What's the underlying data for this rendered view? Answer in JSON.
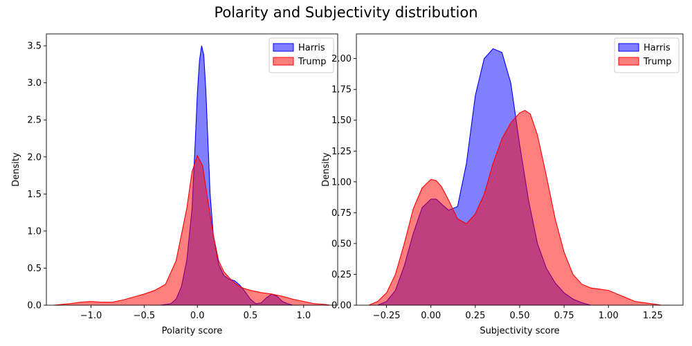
{
  "figure": {
    "title": "Polarity and Subjectivity distribution"
  },
  "colors": {
    "harris": "#0000ff",
    "trump": "#ff0000",
    "fill_opacity": 0.5
  },
  "chart_data": [
    {
      "type": "area",
      "subtype": "kde",
      "xlabel": "Polarity score",
      "ylabel": "Density",
      "xlim": [
        -1.42,
        1.32
      ],
      "ylim": [
        0,
        3.66
      ],
      "xticks": [
        -1.0,
        -0.5,
        0.0,
        0.5,
        1.0
      ],
      "xtick_labels": [
        "−1.0",
        "−0.5",
        "0.0",
        "0.5",
        "1.0"
      ],
      "yticks": [
        0.0,
        0.5,
        1.0,
        1.5,
        2.0,
        2.5,
        3.0,
        3.5
      ],
      "ytick_labels": [
        "0.0",
        "0.5",
        "1.0",
        "1.5",
        "2.0",
        "2.5",
        "3.0",
        "3.5"
      ],
      "legend_position": "top-right",
      "series": [
        {
          "name": "Harris",
          "color": "#0000ff",
          "x": [
            -0.35,
            -0.25,
            -0.2,
            -0.15,
            -0.1,
            -0.05,
            -0.02,
            0.0,
            0.02,
            0.04,
            0.06,
            0.08,
            0.1,
            0.12,
            0.15,
            0.2,
            0.25,
            0.3,
            0.35,
            0.4,
            0.45,
            0.5,
            0.55,
            0.6,
            0.65,
            0.7,
            0.75,
            0.8,
            0.85,
            0.9
          ],
          "y": [
            0.0,
            0.02,
            0.08,
            0.25,
            0.6,
            1.3,
            2.2,
            2.85,
            3.3,
            3.5,
            3.38,
            2.9,
            2.2,
            1.5,
            0.95,
            0.55,
            0.4,
            0.35,
            0.33,
            0.27,
            0.18,
            0.08,
            0.02,
            0.03,
            0.1,
            0.15,
            0.12,
            0.05,
            0.02,
            0.0
          ]
        },
        {
          "name": "Trump",
          "color": "#ff0000",
          "x": [
            -1.35,
            -1.2,
            -1.1,
            -1.0,
            -0.9,
            -0.8,
            -0.7,
            -0.6,
            -0.5,
            -0.4,
            -0.3,
            -0.2,
            -0.1,
            -0.05,
            0.0,
            0.05,
            0.1,
            0.15,
            0.2,
            0.25,
            0.3,
            0.35,
            0.4,
            0.45,
            0.5,
            0.6,
            0.7,
            0.8,
            0.9,
            1.0,
            1.1,
            1.2,
            1.25
          ],
          "y": [
            0.0,
            0.02,
            0.04,
            0.05,
            0.04,
            0.04,
            0.07,
            0.11,
            0.15,
            0.2,
            0.28,
            0.6,
            1.3,
            1.8,
            2.02,
            1.88,
            1.4,
            0.95,
            0.6,
            0.45,
            0.37,
            0.3,
            0.25,
            0.22,
            0.2,
            0.17,
            0.15,
            0.12,
            0.08,
            0.05,
            0.02,
            0.01,
            0.0
          ]
        }
      ]
    },
    {
      "type": "area",
      "subtype": "kde",
      "xlabel": "Subjectivity score",
      "ylabel": "Density",
      "xlim": [
        -0.42,
        1.42
      ],
      "ylim": [
        0,
        2.2
      ],
      "xticks": [
        -0.25,
        0.0,
        0.25,
        0.5,
        0.75,
        1.0,
        1.25
      ],
      "xtick_labels": [
        "−0.25",
        "0.00",
        "0.25",
        "0.50",
        "0.75",
        "1.00",
        "1.25"
      ],
      "yticks": [
        0.0,
        0.25,
        0.5,
        0.75,
        1.0,
        1.25,
        1.5,
        1.75,
        2.0
      ],
      "ytick_labels": [
        "0.00",
        "0.25",
        "0.50",
        "0.75",
        "1.00",
        "1.25",
        "1.50",
        "1.75",
        "2.00"
      ],
      "legend_position": "top-right",
      "series": [
        {
          "name": "Harris",
          "color": "#0000ff",
          "x": [
            -0.3,
            -0.25,
            -0.2,
            -0.15,
            -0.1,
            -0.05,
            0.0,
            0.03,
            0.06,
            0.1,
            0.15,
            0.2,
            0.25,
            0.3,
            0.35,
            0.4,
            0.45,
            0.5,
            0.55,
            0.6,
            0.65,
            0.7,
            0.75,
            0.8,
            0.85,
            0.9
          ],
          "y": [
            0.0,
            0.03,
            0.12,
            0.32,
            0.58,
            0.79,
            0.86,
            0.86,
            0.82,
            0.77,
            0.8,
            1.15,
            1.7,
            2.0,
            2.08,
            2.05,
            1.8,
            1.3,
            0.85,
            0.5,
            0.3,
            0.18,
            0.1,
            0.05,
            0.02,
            0.0
          ]
        },
        {
          "name": "Trump",
          "color": "#ff0000",
          "x": [
            -0.35,
            -0.3,
            -0.25,
            -0.2,
            -0.15,
            -0.1,
            -0.05,
            0.0,
            0.03,
            0.06,
            0.1,
            0.15,
            0.2,
            0.25,
            0.3,
            0.35,
            0.4,
            0.45,
            0.5,
            0.53,
            0.56,
            0.6,
            0.65,
            0.7,
            0.75,
            0.8,
            0.85,
            0.9,
            0.95,
            1.0,
            1.05,
            1.1,
            1.15,
            1.2,
            1.25,
            1.3,
            1.35
          ],
          "y": [
            0.0,
            0.03,
            0.1,
            0.25,
            0.5,
            0.78,
            0.95,
            1.02,
            1.01,
            0.96,
            0.85,
            0.7,
            0.66,
            0.74,
            0.9,
            1.15,
            1.35,
            1.48,
            1.56,
            1.58,
            1.55,
            1.38,
            1.05,
            0.7,
            0.43,
            0.25,
            0.17,
            0.14,
            0.13,
            0.12,
            0.09,
            0.06,
            0.03,
            0.02,
            0.01,
            0.0,
            0.0
          ]
        }
      ]
    }
  ]
}
